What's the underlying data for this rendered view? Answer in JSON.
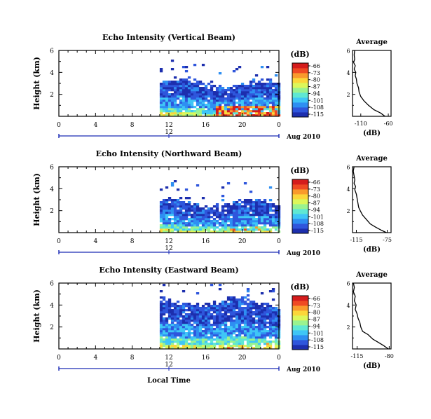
{
  "colors": {
    "cmap": [
      "#1d2fae",
      "#2f56dc",
      "#2e8ff2",
      "#3fc6f6",
      "#5fe8d3",
      "#9af38f",
      "#dcf75a",
      "#fbd63a",
      "#f99a2c",
      "#ef4a23",
      "#d51c1c"
    ],
    "axis": "#000000",
    "datebar": "#1a2ab5",
    "profile": "#000000"
  },
  "chart_data": [
    {
      "type": "heatmap",
      "title": "Echo Intensity (Vertical Beam)",
      "ylabel": "Height (km)",
      "ylim": [
        0,
        6
      ],
      "y_ticks": [
        "2",
        "4",
        "6"
      ],
      "x_ticks": [
        "0",
        "4",
        "8",
        "12",
        "16",
        "20",
        "0"
      ],
      "date_label": "12",
      "date_suffix": "Aug 2010",
      "colorbar_unit": "(dB)",
      "colorbar_ticks": [
        "-66",
        "-73",
        "-80",
        "-87",
        "-94",
        "-101",
        "-108",
        "-115"
      ],
      "data_start_hour": 11,
      "top_height_km": 3.2,
      "strong_echo": true,
      "profile": {
        "title": "Average",
        "xlabel": "(dB)",
        "x_ticks": [
          "-110",
          "-60"
        ],
        "xlim": [
          -125,
          -55
        ],
        "y_ticks": [
          "2",
          "4",
          "6"
        ],
        "points": [
          [
            -121,
            6.0
          ],
          [
            -122,
            5.6
          ],
          [
            -121,
            5.2
          ],
          [
            -123,
            4.9
          ],
          [
            -120,
            4.6
          ],
          [
            -122,
            4.3
          ],
          [
            -119,
            4.0
          ],
          [
            -120,
            3.7
          ],
          [
            -118,
            3.4
          ],
          [
            -117,
            3.0
          ],
          [
            -114,
            2.6
          ],
          [
            -113,
            2.2
          ],
          [
            -110,
            1.8
          ],
          [
            -104,
            1.4
          ],
          [
            -96,
            1.0
          ],
          [
            -86,
            0.6
          ],
          [
            -74,
            0.3
          ],
          [
            -66,
            0.0
          ]
        ]
      }
    },
    {
      "type": "heatmap",
      "title": "Echo Intensity (Northward Beam)",
      "ylabel": "Height (km)",
      "ylim": [
        0,
        6
      ],
      "y_ticks": [
        "2",
        "4",
        "6"
      ],
      "x_ticks": [
        "0",
        "4",
        "8",
        "12",
        "16",
        "20",
        "0"
      ],
      "date_label": "12",
      "date_suffix": "Aug 2010",
      "colorbar_unit": "(dB)",
      "colorbar_ticks": [
        "-66",
        "-73",
        "-80",
        "-87",
        "-94",
        "-101",
        "-108",
        "-115"
      ],
      "data_start_hour": 11,
      "top_height_km": 2.9,
      "strong_echo": false,
      "profile": {
        "title": "Average",
        "xlabel": "(dB)",
        "x_ticks": [
          "-115",
          "-75"
        ],
        "xlim": [
          -120,
          -70
        ],
        "y_ticks": [
          "2",
          "4",
          "6"
        ],
        "points": [
          [
            -118,
            6.0
          ],
          [
            -119,
            5.6
          ],
          [
            -118,
            5.2
          ],
          [
            -117,
            4.8
          ],
          [
            -118,
            4.5
          ],
          [
            -116,
            4.2
          ],
          [
            -117,
            3.9
          ],
          [
            -115,
            3.5
          ],
          [
            -114,
            3.1
          ],
          [
            -113,
            2.7
          ],
          [
            -112,
            2.3
          ],
          [
            -110,
            2.0
          ],
          [
            -107,
            1.6
          ],
          [
            -102,
            1.2
          ],
          [
            -97,
            0.8
          ],
          [
            -90,
            0.5
          ],
          [
            -82,
            0.2
          ],
          [
            -76,
            0.0
          ]
        ]
      }
    },
    {
      "type": "heatmap",
      "title": "Echo Intensity (Eastward Beam)",
      "ylabel": "Height (km)",
      "ylim": [
        0,
        6
      ],
      "y_ticks": [
        "2",
        "4",
        "6"
      ],
      "x_ticks": [
        "0",
        "4",
        "8",
        "12",
        "16",
        "20",
        "0"
      ],
      "date_label": "12",
      "date_suffix": "Aug 2010",
      "xlabel": "Local Time",
      "colorbar_unit": "(dB)",
      "colorbar_ticks": [
        "-66",
        "-73",
        "-80",
        "-87",
        "-94",
        "-101",
        "-108",
        "-115"
      ],
      "data_start_hour": 11,
      "top_height_km": 4.5,
      "strong_echo": false,
      "profile": {
        "title": "Average",
        "xlabel": "(dB)",
        "x_ticks": [
          "-115",
          "-80"
        ],
        "xlim": [
          -120,
          -78
        ],
        "y_ticks": [
          "2",
          "4",
          "6"
        ],
        "points": [
          [
            -119,
            6.0
          ],
          [
            -118,
            5.6
          ],
          [
            -119,
            5.2
          ],
          [
            -117,
            4.8
          ],
          [
            -118,
            4.4
          ],
          [
            -116,
            4.0
          ],
          [
            -117,
            3.6
          ],
          [
            -115,
            3.2
          ],
          [
            -114,
            2.8
          ],
          [
            -112,
            2.4
          ],
          [
            -111,
            2.0
          ],
          [
            -109,
            1.6
          ],
          [
            -103,
            1.3
          ],
          [
            -98,
            0.9
          ],
          [
            -92,
            0.6
          ],
          [
            -86,
            0.3
          ],
          [
            -81,
            0.0
          ]
        ]
      }
    }
  ]
}
